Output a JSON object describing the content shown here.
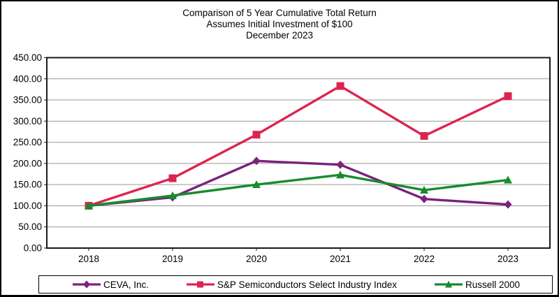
{
  "title": {
    "line1": "Comparison of 5 Year Cumulative Total Return",
    "line2": "Assumes Initial Investment of $100",
    "line3": "December 2023"
  },
  "chart_data": {
    "type": "line",
    "categories": [
      "2018",
      "2019",
      "2020",
      "2021",
      "2022",
      "2023"
    ],
    "series": [
      {
        "name": "CEVA, Inc.",
        "marker": "diamond",
        "color": "#7B217E",
        "values": [
          100,
          120,
          206,
          197,
          116,
          103
        ]
      },
      {
        "name": "S&P Semiconductors Select Industry Index",
        "marker": "square",
        "color": "#DC2450",
        "values": [
          100,
          165,
          268,
          383,
          265,
          359
        ]
      },
      {
        "name": "Russell 2000",
        "marker": "triangle",
        "color": "#178C2E",
        "values": [
          100,
          124,
          150,
          173,
          137,
          161
        ]
      }
    ],
    "ylim": [
      0,
      450
    ],
    "ytick_step": 50,
    "ytick_decimals": 2,
    "grid": "horizontal",
    "legend_position": "bottom"
  },
  "colors": {
    "frame": "#1a1a1a",
    "grid": "#999999",
    "background": "#ffffff",
    "text": "#000000"
  }
}
